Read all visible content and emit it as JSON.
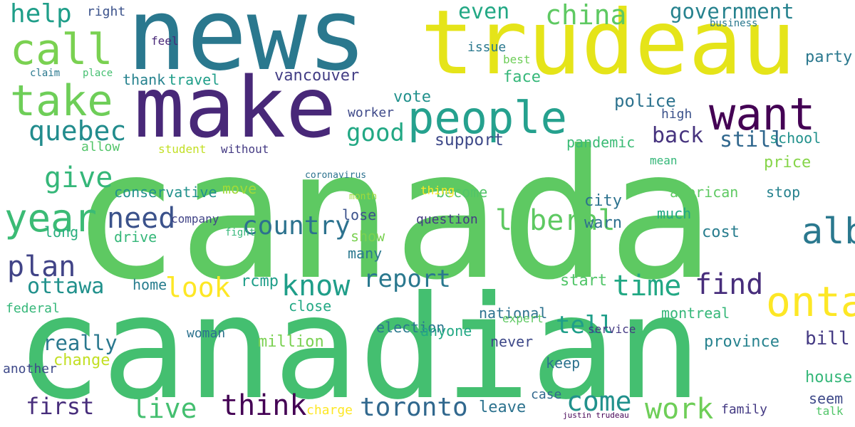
{
  "words": [
    {
      "text": "canada",
      "color": "#5ec962"
    },
    {
      "text": "canadian",
      "color": "#44bf70"
    },
    {
      "text": "news",
      "color": "#2a788e"
    },
    {
      "text": "trudeau",
      "color": "#e5e419"
    },
    {
      "text": "make",
      "color": "#482878"
    },
    {
      "text": "people",
      "color": "#25a18e"
    },
    {
      "text": "want",
      "color": "#440154"
    },
    {
      "text": "call",
      "color": "#7ad151"
    },
    {
      "text": "take",
      "color": "#6ece58"
    },
    {
      "text": "year",
      "color": "#3bbb75"
    },
    {
      "text": "ontario",
      "color": "#fde725"
    },
    {
      "text": "alberta",
      "color": "#2a788e"
    },
    {
      "text": "quebec",
      "color": "#228c8d"
    },
    {
      "text": "help",
      "color": "#1f9e89"
    },
    {
      "text": "china",
      "color": "#5ec962"
    },
    {
      "text": "government",
      "color": "#26828e"
    },
    {
      "text": "even",
      "color": "#22a884"
    },
    {
      "text": "plan",
      "color": "#414487"
    },
    {
      "text": "ottawa",
      "color": "#21918c"
    },
    {
      "text": "give",
      "color": "#35b779"
    },
    {
      "text": "need",
      "color": "#3b528b"
    },
    {
      "text": "look",
      "color": "#fde725"
    },
    {
      "text": "know",
      "color": "#1f9e89"
    },
    {
      "text": "time",
      "color": "#22a884"
    },
    {
      "text": "find",
      "color": "#472d7b"
    },
    {
      "text": "liberal",
      "color": "#5ec962"
    },
    {
      "text": "country",
      "color": "#2c728e"
    },
    {
      "text": "good",
      "color": "#22a884"
    },
    {
      "text": "report",
      "color": "#2a788e"
    },
    {
      "text": "think",
      "color": "#440154"
    },
    {
      "text": "live",
      "color": "#44bf70"
    },
    {
      "text": "come",
      "color": "#21918c"
    },
    {
      "text": "work",
      "color": "#6ece58"
    },
    {
      "text": "toronto",
      "color": "#31688e"
    },
    {
      "text": "first",
      "color": "#472d7b"
    },
    {
      "text": "back",
      "color": "#46337e"
    },
    {
      "text": "still",
      "color": "#31688e"
    },
    {
      "text": "police",
      "color": "#2c728e"
    },
    {
      "text": "support",
      "color": "#3e4989"
    },
    {
      "text": "tell",
      "color": "#1f9e89"
    },
    {
      "text": "really",
      "color": "#2a788e"
    },
    {
      "text": "change",
      "color": "#c2df23"
    },
    {
      "text": "bill",
      "color": "#443a83"
    },
    {
      "text": "vancouver",
      "color": "#433e85"
    },
    {
      "text": "vote",
      "color": "#21918c"
    },
    {
      "text": "face",
      "color": "#35b779"
    },
    {
      "text": "pandemic",
      "color": "#3bbb75"
    },
    {
      "text": "price",
      "color": "#86d549"
    },
    {
      "text": "stop",
      "color": "#26828e"
    },
    {
      "text": "american",
      "color": "#5ec962"
    },
    {
      "text": "city",
      "color": "#2c728e"
    },
    {
      "text": "warn",
      "color": "#2d708e"
    },
    {
      "text": "cost",
      "color": "#287d8e"
    },
    {
      "text": "much",
      "color": "#22a884"
    },
    {
      "text": "party",
      "color": "#2a788e"
    },
    {
      "text": "school",
      "color": "#21918c"
    },
    {
      "text": "conservative",
      "color": "#21918c"
    },
    {
      "text": "move",
      "color": "#a0da39"
    },
    {
      "text": "long",
      "color": "#29af7f"
    },
    {
      "text": "drive",
      "color": "#35b779"
    },
    {
      "text": "lose",
      "color": "#3b528b"
    },
    {
      "text": "show",
      "color": "#7ad151"
    },
    {
      "text": "many",
      "color": "#2a788e"
    },
    {
      "text": "become",
      "color": "#52c569"
    },
    {
      "text": "home",
      "color": "#287d8e"
    },
    {
      "text": "rcmp",
      "color": "#1f9e89"
    },
    {
      "text": "start",
      "color": "#52c569"
    },
    {
      "text": "keep",
      "color": "#2c728e"
    },
    {
      "text": "national",
      "color": "#2c728e"
    },
    {
      "text": "never",
      "color": "#3e4989"
    },
    {
      "text": "expert",
      "color": "#5ec962"
    },
    {
      "text": "service",
      "color": "#443a83"
    },
    {
      "text": "montreal",
      "color": "#35b779"
    },
    {
      "text": "province",
      "color": "#26828e"
    },
    {
      "text": "house",
      "color": "#35b779"
    },
    {
      "text": "seem",
      "color": "#3e4989"
    },
    {
      "text": "talk",
      "color": "#52c569"
    },
    {
      "text": "family",
      "color": "#443a83"
    },
    {
      "text": "leave",
      "color": "#2c728e"
    },
    {
      "text": "case",
      "color": "#31688e"
    },
    {
      "text": "charge",
      "color": "#fde725"
    },
    {
      "text": "election",
      "color": "#2a788e"
    },
    {
      "text": "anyone",
      "color": "#22a884"
    },
    {
      "text": "million",
      "color": "#7ad151"
    },
    {
      "text": "close",
      "color": "#22a884"
    },
    {
      "text": "woman",
      "color": "#2c728e"
    },
    {
      "text": "federal",
      "color": "#35b779"
    },
    {
      "text": "another",
      "color": "#3e4989"
    },
    {
      "text": "question",
      "color": "#443a83"
    },
    {
      "text": "thing",
      "color": "#fde725"
    },
    {
      "text": "worker",
      "color": "#3e4989"
    },
    {
      "text": "student",
      "color": "#c2df23"
    },
    {
      "text": "allow",
      "color": "#52c569"
    },
    {
      "text": "without",
      "color": "#443a83"
    },
    {
      "text": "thank",
      "color": "#26828e"
    },
    {
      "text": "travel",
      "color": "#1f9e89"
    },
    {
      "text": "right",
      "color": "#3b528b"
    },
    {
      "text": "place",
      "color": "#44bf70"
    },
    {
      "text": "claim",
      "color": "#2a788e"
    },
    {
      "text": "feel",
      "color": "#482878"
    },
    {
      "text": "best",
      "color": "#6ece58"
    },
    {
      "text": "issue",
      "color": "#2a788e"
    },
    {
      "text": "high",
      "color": "#3b528b"
    },
    {
      "text": "mean",
      "color": "#35b779"
    },
    {
      "text": "company",
      "color": "#414487"
    },
    {
      "text": "fight",
      "color": "#35b779"
    },
    {
      "text": "month",
      "color": "#a0da39"
    },
    {
      "text": "coronavirus",
      "color": "#2c728e"
    },
    {
      "text": "business",
      "color": "#2a788e"
    },
    {
      "text": "justin trudeau",
      "color": "#440154"
    }
  ]
}
